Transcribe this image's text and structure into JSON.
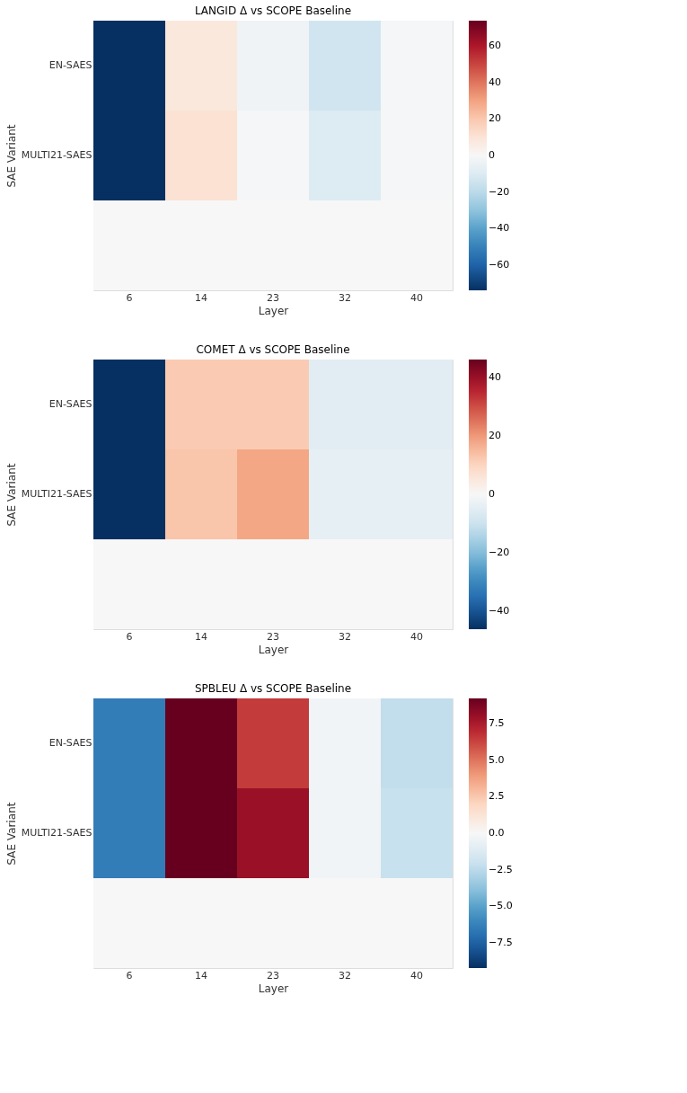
{
  "chart_data": [
    {
      "type": "heatmap",
      "title": "LANGID Δ vs SCOPE Baseline",
      "xlabel": "Layer",
      "ylabel": "SAE Variant",
      "categories": [
        "6",
        "14",
        "23",
        "32",
        "40"
      ],
      "y_categories": [
        "EN-SAES",
        "MULTI21-SAES",
        null
      ],
      "cells": [
        [
          -74,
          8,
          -3,
          -15,
          -1
        ],
        [
          -74,
          11,
          -1,
          -10,
          -1
        ],
        [
          0,
          0,
          0,
          0,
          0
        ]
      ],
      "clim": [
        -74,
        74
      ],
      "cticks": [
        -60,
        -40,
        -20,
        0,
        20,
        40,
        60
      ]
    },
    {
      "type": "heatmap",
      "title": "COMET Δ vs SCOPE Baseline",
      "xlabel": "Layer",
      "ylabel": "SAE Variant",
      "categories": [
        "6",
        "14",
        "23",
        "32",
        "40"
      ],
      "y_categories": [
        "EN-SAES",
        "MULTI21-SAES",
        null
      ],
      "cells": [
        [
          -46,
          12,
          12,
          -5,
          -5
        ],
        [
          -46,
          13,
          18,
          -4,
          -4
        ],
        [
          0,
          0,
          0,
          0,
          0
        ]
      ],
      "clim": [
        -46,
        46
      ],
      "cticks": [
        -40,
        -20,
        0,
        20,
        40
      ]
    },
    {
      "type": "heatmap",
      "title": "SPBLEU Δ vs SCOPE Baseline",
      "xlabel": "Layer",
      "ylabel": "SAE Variant",
      "categories": [
        "6",
        "14",
        "23",
        "32",
        "40"
      ],
      "y_categories": [
        "EN-SAES",
        "MULTI21-SAES",
        null
      ],
      "cells": [
        [
          -6.5,
          9.25,
          6.5,
          -0.3,
          -2.3
        ],
        [
          -6.5,
          9.25,
          8,
          -0.3,
          -2.1
        ],
        [
          0,
          0,
          0,
          0,
          0
        ]
      ],
      "clim": [
        -9.25,
        9.25
      ],
      "cticks": [
        {
          "value": -7.5,
          "label": "−7.5"
        },
        {
          "value": -5,
          "label": "−5.0"
        },
        {
          "value": -2.5,
          "label": "−2.5"
        },
        {
          "value": 0,
          "label": "0.0"
        },
        {
          "value": 2.5,
          "label": "2.5"
        },
        {
          "value": 5,
          "label": "5.0"
        },
        {
          "value": 7.5,
          "label": "7.5"
        }
      ]
    }
  ]
}
